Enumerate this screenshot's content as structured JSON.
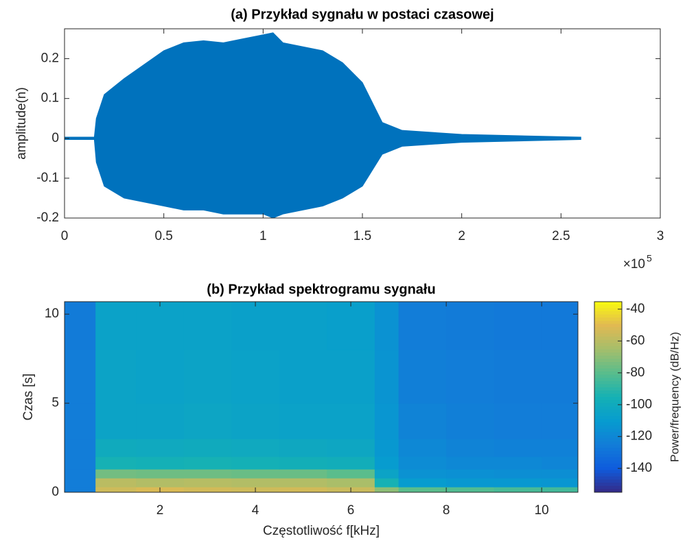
{
  "chart_data": [
    {
      "type": "area",
      "title": "(a) Przykład sygnału w postaci czasowej",
      "y_label": "amplitude(n)",
      "x_multiplier": {
        "base": "×10",
        "exponent": "5"
      },
      "x": [
        0,
        15000,
        16000,
        20000,
        30000,
        50000,
        60000,
        70000,
        80000,
        90000,
        100000,
        105000,
        110000,
        130000,
        140000,
        150000,
        160000,
        170000,
        200000,
        260000
      ],
      "values_upper": [
        0.003,
        0.003,
        0.05,
        0.11,
        0.15,
        0.22,
        0.24,
        0.245,
        0.24,
        0.25,
        0.26,
        0.265,
        0.24,
        0.22,
        0.19,
        0.14,
        0.04,
        0.02,
        0.01,
        0.003
      ],
      "values_lower": [
        -0.003,
        -0.003,
        -0.06,
        -0.12,
        -0.15,
        -0.17,
        -0.18,
        -0.18,
        -0.19,
        -0.19,
        -0.19,
        -0.2,
        -0.19,
        -0.17,
        -0.15,
        -0.12,
        -0.04,
        -0.02,
        -0.01,
        -0.003
      ],
      "color": "#0072bd",
      "xlim": [
        0,
        300000
      ],
      "xticks": [
        0,
        {
          "value": 50000,
          "label": "0.5"
        },
        {
          "value": 100000,
          "label": "1"
        },
        {
          "value": 150000,
          "label": "1.5"
        },
        {
          "value": 200000,
          "label": "2"
        },
        {
          "value": 250000,
          "label": "2.5"
        },
        {
          "value": 300000,
          "label": "3"
        }
      ],
      "ylim": [
        -0.2,
        0.275
      ],
      "yticks": [
        -0.2,
        -0.1,
        0,
        0.1,
        0.2
      ],
      "grid": false
    },
    {
      "type": "heatmap",
      "title": "(b) Przykład spektrogramu sygnału",
      "x_label": "Częstotliwość f[kHz]",
      "y_label": "Czas [s]",
      "colorbar_label": "Power/frequency (dB/Hz)",
      "colormap": "parula",
      "xbins": [
        0,
        0.65,
        1.5,
        2.5,
        3.5,
        4.5,
        5.5,
        6.5,
        7,
        8,
        9,
        10,
        10.76
      ],
      "ybins": [
        0,
        0.3,
        0.8,
        1.3,
        2,
        3,
        5,
        8,
        10.7
      ],
      "values": [
        [
          -125,
          -55,
          -52,
          -54,
          -55,
          -54,
          -56,
          -70,
          -80,
          -82,
          -84,
          -85
        ],
        [
          -125,
          -60,
          -62,
          -61,
          -62,
          -62,
          -64,
          -95,
          -110,
          -112,
          -112,
          -113
        ],
        [
          -125,
          -75,
          -76,
          -76,
          -77,
          -77,
          -80,
          -105,
          -115,
          -116,
          -117,
          -117
        ],
        [
          -125,
          -95,
          -96,
          -95,
          -96,
          -97,
          -98,
          -110,
          -118,
          -120,
          -120,
          -121
        ],
        [
          -125,
          -100,
          -101,
          -100,
          -101,
          -102,
          -103,
          -112,
          -120,
          -122,
          -123,
          -123
        ],
        [
          -125,
          -105,
          -105,
          -104,
          -105,
          -106,
          -106,
          -113,
          -122,
          -124,
          -125,
          -125
        ],
        [
          -125,
          -105,
          -106,
          -105,
          -106,
          -107,
          -107,
          -114,
          -124,
          -125,
          -126,
          -126
        ],
        [
          -126,
          -106,
          -106,
          -106,
          -107,
          -107,
          -108,
          -115,
          -125,
          -126,
          -127,
          -127
        ]
      ],
      "xlim": [
        0,
        10.76
      ],
      "xticks": [
        2,
        4,
        6,
        8,
        10
      ],
      "ylim": [
        0,
        10.7
      ],
      "yticks": [
        0,
        5,
        10
      ],
      "clim": [
        -155,
        -35.3
      ],
      "cticks": [
        -140,
        -120,
        -100,
        -80,
        -60,
        -40
      ]
    }
  ]
}
